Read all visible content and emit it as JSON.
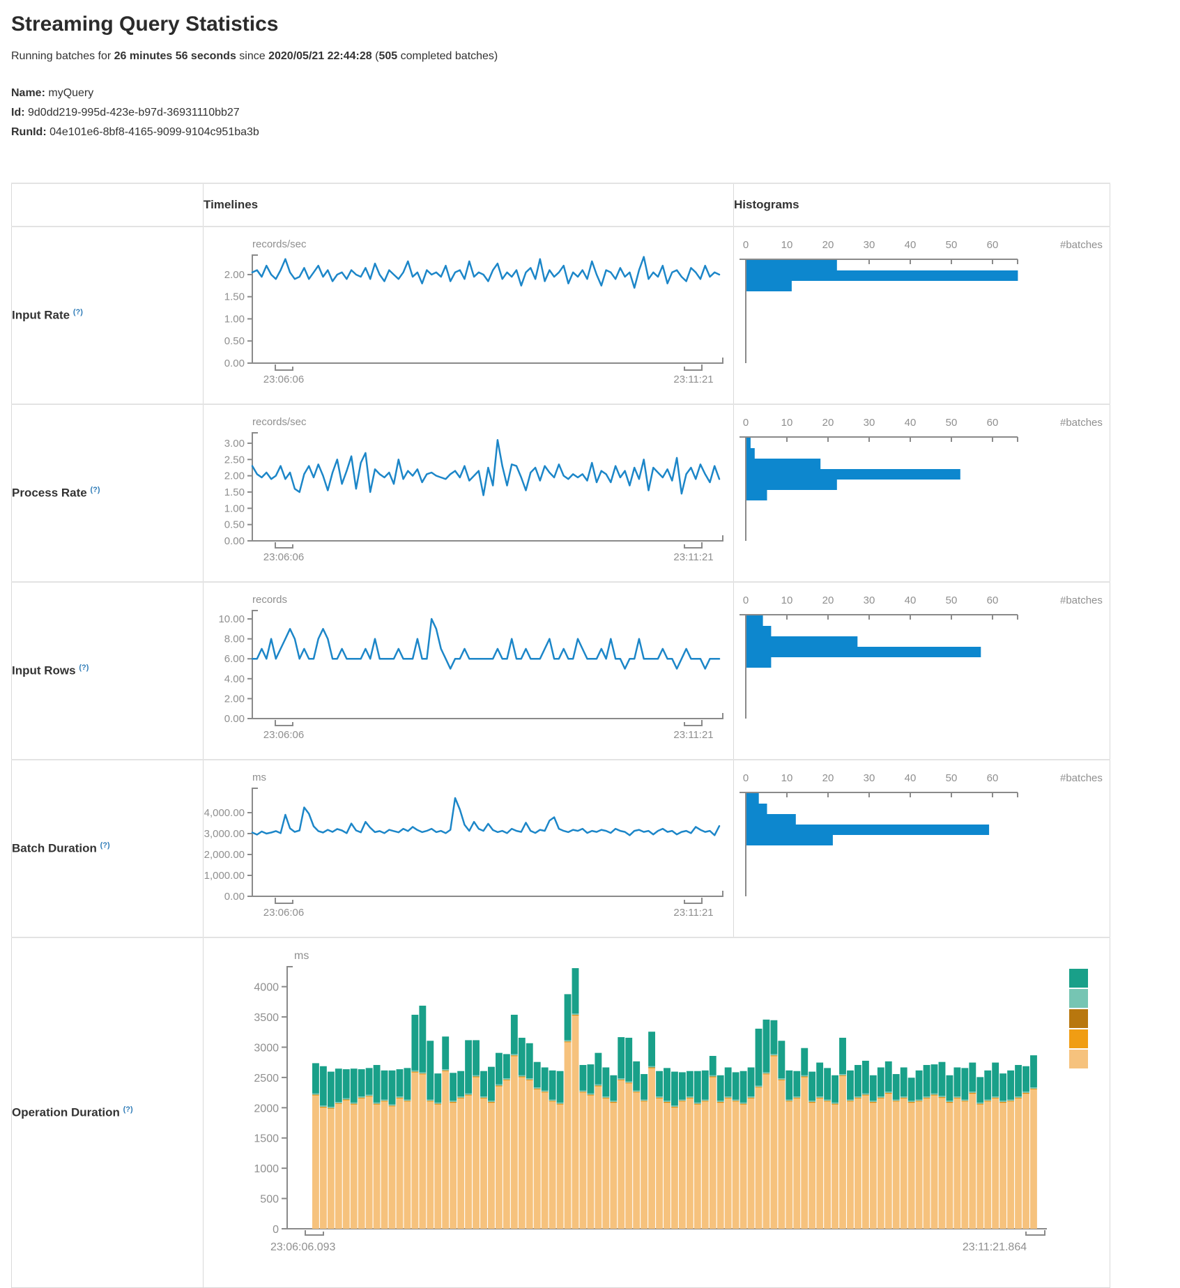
{
  "page": {
    "title": "Streaming Query Statistics"
  },
  "subtitle": {
    "prefix": "Running batches for",
    "duration": "26 minutes 56 seconds",
    "since": "since",
    "start_time": "2020/05/21 22:44:28",
    "open_paren": "(",
    "completed_count": "505",
    "suffix": "completed batches)"
  },
  "query_info": {
    "name_label": "Name:",
    "name": "myQuery",
    "id_label": "Id:",
    "id": "9d0dd219-995d-423e-b97d-36931110bb27",
    "runid_label": "RunId:",
    "runid": "04e101e6-8bf8-4165-9099-9104c951ba3b"
  },
  "table": {
    "timelines_header": "Timelines",
    "histograms_header": "Histograms"
  },
  "colors": {
    "timeline_line": "#1c86c8",
    "histogram_bar": "#0d87ce",
    "axis": "#8a8a8a",
    "tick_text": "#8f8f8f",
    "help_link": "#2f7cb8",
    "legend": [
      "#19a089",
      "#76c5b3",
      "#b8770e",
      "#f09d13",
      "#f6c27d"
    ]
  },
  "chart_data": [
    {
      "id": "input-rate",
      "label": "Input Rate",
      "help_marker": "(?)",
      "type": "line",
      "unit": "records/sec",
      "x_start_label": "23:06:06",
      "x_end_label": "23:11:21",
      "y_tick_labels": [
        "2.00",
        "1.50",
        "1.00",
        "0.50",
        "0.00"
      ],
      "y_tick_values": [
        2,
        1.5,
        1,
        0.5,
        0
      ],
      "y_axis_max": 2.44,
      "values": [
        2.05,
        2.1,
        1.95,
        2.2,
        2.0,
        1.9,
        2.1,
        2.35,
        2.05,
        1.9,
        1.95,
        2.15,
        1.9,
        2.05,
        2.2,
        1.95,
        2.1,
        1.85,
        2.0,
        2.05,
        1.9,
        2.1,
        2.0,
        1.95,
        2.15,
        1.9,
        2.25,
        2.0,
        1.85,
        2.1,
        2.0,
        1.9,
        2.05,
        2.3,
        1.95,
        2.05,
        1.8,
        2.1,
        2.0,
        2.05,
        1.95,
        2.2,
        1.85,
        2.05,
        2.1,
        1.9,
        2.3,
        1.95,
        2.05,
        2.0,
        1.85,
        2.1,
        2.25,
        1.9,
        2.05,
        1.95,
        2.1,
        1.75,
        2.05,
        2.15,
        1.9,
        2.35,
        1.85,
        2.1,
        1.95,
        2.05,
        2.2,
        1.8,
        2.05,
        1.95,
        2.1,
        1.9,
        2.3,
        2.0,
        1.75,
        2.1,
        2.05,
        1.9,
        2.15,
        1.95,
        2.05,
        1.7,
        2.1,
        2.4,
        1.9,
        2.05,
        1.95,
        2.2,
        1.8,
        2.05,
        2.1,
        1.95,
        1.85,
        2.15,
        2.05,
        1.9,
        2.2,
        1.95,
        2.05,
        2.0
      ],
      "histogram": {
        "x_tick_labels": [
          "0",
          "10",
          "20",
          "30",
          "40",
          "50",
          "60"
        ],
        "x_tick_values": [
          0,
          10,
          20,
          30,
          40,
          50,
          60
        ],
        "axis_label": "#batches",
        "bins": [
          22,
          66,
          11
        ]
      }
    },
    {
      "id": "process-rate",
      "label": "Process Rate",
      "help_marker": "(?)",
      "type": "line",
      "unit": "records/sec",
      "x_start_label": "23:06:06",
      "x_end_label": "23:11:21",
      "y_tick_labels": [
        "3.00",
        "2.50",
        "2.00",
        "1.50",
        "1.00",
        "0.50",
        "0.00"
      ],
      "y_tick_values": [
        3,
        2.5,
        2,
        1.5,
        1,
        0.5,
        0
      ],
      "y_axis_max": 3.32,
      "values": [
        2.3,
        2.05,
        1.95,
        2.1,
        1.9,
        2.0,
        2.3,
        1.9,
        2.1,
        1.6,
        1.5,
        2.05,
        2.3,
        1.95,
        2.35,
        2.0,
        1.55,
        2.1,
        2.5,
        1.75,
        2.15,
        2.6,
        1.6,
        2.4,
        2.7,
        1.5,
        2.2,
        2.05,
        1.95,
        2.1,
        1.75,
        2.5,
        1.9,
        2.15,
        2.0,
        2.2,
        1.8,
        2.05,
        2.1,
        2.0,
        1.95,
        1.9,
        2.05,
        2.15,
        1.95,
        2.3,
        1.85,
        2.0,
        2.15,
        1.4,
        2.25,
        1.7,
        3.1,
        2.3,
        1.7,
        2.35,
        2.3,
        1.95,
        1.55,
        2.1,
        2.25,
        1.85,
        2.3,
        2.1,
        1.95,
        2.35,
        2.0,
        1.9,
        2.05,
        1.95,
        2.05,
        1.85,
        2.4,
        1.8,
        2.15,
        2.05,
        1.8,
        2.3,
        1.95,
        2.15,
        1.7,
        2.25,
        1.9,
        2.5,
        1.55,
        2.25,
        2.1,
        1.95,
        2.2,
        1.85,
        2.55,
        1.45,
        2.05,
        2.25,
        1.9,
        2.35,
        2.05,
        1.8,
        2.3,
        1.9
      ],
      "histogram": {
        "x_tick_labels": [
          "0",
          "10",
          "20",
          "30",
          "40",
          "50",
          "60"
        ],
        "x_tick_values": [
          0,
          10,
          20,
          30,
          40,
          50,
          60
        ],
        "axis_label": "#batches",
        "bins": [
          1,
          2,
          18,
          52,
          22,
          5
        ]
      }
    },
    {
      "id": "input-rows",
      "label": "Input Rows",
      "help_marker": "(?)",
      "type": "line",
      "unit": "records",
      "x_start_label": "23:06:06",
      "x_end_label": "23:11:21",
      "y_tick_labels": [
        "10.00",
        "8.00",
        "6.00",
        "4.00",
        "2.00",
        "0.00"
      ],
      "y_tick_values": [
        10,
        8,
        6,
        4,
        2,
        0
      ],
      "y_axis_max": 10.84,
      "values": [
        6,
        6,
        7,
        6,
        8,
        6,
        7,
        8,
        9,
        8,
        6,
        7,
        6,
        6,
        8,
        9,
        8,
        6,
        6,
        7,
        6,
        6,
        6,
        6,
        7,
        6,
        8,
        6,
        6,
        6,
        6,
        7,
        6,
        6,
        6,
        8,
        6,
        6,
        10,
        9,
        7,
        6,
        5,
        6,
        6,
        7,
        6,
        6,
        6,
        6,
        6,
        6,
        7,
        6,
        6,
        8,
        6,
        6,
        7,
        6,
        6,
        6,
        7,
        8,
        6,
        6,
        7,
        6,
        6,
        8,
        7,
        6,
        6,
        6,
        7,
        6,
        8,
        6,
        6,
        5,
        6,
        6,
        8,
        6,
        6,
        6,
        6,
        7,
        6,
        6,
        5,
        6,
        7,
        6,
        6,
        6,
        5,
        6,
        6,
        6
      ],
      "histogram": {
        "x_tick_labels": [
          "0",
          "10",
          "20",
          "30",
          "40",
          "50",
          "60"
        ],
        "x_tick_values": [
          0,
          10,
          20,
          30,
          40,
          50,
          60
        ],
        "axis_label": "#batches",
        "bins": [
          4,
          6,
          27,
          57,
          6
        ]
      }
    },
    {
      "id": "batch-duration",
      "label": "Batch Duration",
      "help_marker": "(?)",
      "type": "line",
      "unit": "ms",
      "x_start_label": "23:06:06",
      "x_end_label": "23:11:21",
      "y_tick_labels": [
        "4,000.00",
        "3,000.00",
        "2,000.00",
        "1,000.00",
        "0.00"
      ],
      "y_tick_values": [
        4000,
        3000,
        2000,
        1000,
        0
      ],
      "y_axis_max": 5166,
      "values": [
        3050,
        2950,
        3100,
        3000,
        3050,
        3120,
        3020,
        3900,
        3250,
        3080,
        3150,
        4250,
        3950,
        3350,
        3120,
        3050,
        3180,
        3080,
        3220,
        3150,
        3020,
        3480,
        3150,
        3060,
        3560,
        3280,
        3070,
        3120,
        3020,
        3180,
        3120,
        3060,
        3230,
        3120,
        3320,
        3170,
        3070,
        3130,
        3230,
        3070,
        3130,
        3020,
        3180,
        4700,
        4150,
        3420,
        3130,
        3560,
        3230,
        3130,
        3470,
        3170,
        3070,
        3130,
        3020,
        3230,
        3130,
        3080,
        3520,
        3130,
        3030,
        3180,
        3130,
        3620,
        3780,
        3230,
        3130,
        3070,
        3180,
        3130,
        3230,
        3030,
        3130,
        3080,
        3180,
        3130,
        3030,
        3230,
        3130,
        3080,
        2920,
        3130,
        3180,
        3080,
        3130,
        2960,
        3130,
        3230,
        3080,
        3130,
        2960,
        3080,
        3130,
        3020,
        3320,
        3180,
        3080,
        3130,
        2920,
        3360
      ],
      "histogram": {
        "x_tick_labels": [
          "0",
          "10",
          "20",
          "30",
          "40",
          "50",
          "60"
        ],
        "x_tick_values": [
          0,
          10,
          20,
          30,
          40,
          50,
          60
        ],
        "axis_label": "#batches",
        "bins": [
          3,
          5,
          12,
          59,
          21
        ]
      }
    },
    {
      "id": "operation-duration",
      "label": "Operation Duration",
      "help_marker": "(?)",
      "type": "stacked-bar",
      "unit": "ms",
      "x_start_label": "23:06:06.093",
      "x_end_label": "23:11:21.864",
      "y_tick_labels": [
        "4000",
        "3500",
        "3000",
        "2500",
        "2000",
        "1500",
        "1000",
        "500",
        "0"
      ],
      "y_tick_values": [
        4000,
        3500,
        3000,
        2500,
        2000,
        1500,
        1000,
        500,
        0
      ],
      "y_axis_max": 4330,
      "stack": {
        "bottom_color": "#f6c27d",
        "bottom_values": [
          2200,
          2000,
          1980,
          2060,
          2120,
          2050,
          2150,
          2180,
          2050,
          2100,
          2020,
          2150,
          2100,
          2580,
          2550,
          2100,
          2050,
          2600,
          2080,
          2150,
          2200,
          2500,
          2150,
          2080,
          2350,
          2450,
          2850,
          2500,
          2450,
          2300,
          2250,
          2100,
          2050,
          3080,
          3520,
          2250,
          2200,
          2350,
          2150,
          2080,
          2450,
          2400,
          2250,
          2100,
          2650,
          2150,
          2080,
          2000,
          2100,
          2150,
          2050,
          2100,
          2500,
          2080,
          2150,
          2100,
          2050,
          2150,
          2330,
          2550,
          2850,
          2450,
          2100,
          2150,
          2500,
          2080,
          2150,
          2100,
          2050,
          2520,
          2100,
          2150,
          2200,
          2080,
          2150,
          2230,
          2100,
          2150,
          2080,
          2100,
          2150,
          2200,
          2160,
          2080,
          2150,
          2100,
          2230,
          2050,
          2100,
          2150,
          2080,
          2100,
          2150,
          2230,
          2300
        ],
        "slivers": [
          {
            "color": "#f09d13",
            "value": 10
          },
          {
            "color": "#b8770e",
            "value": 6
          },
          {
            "color": "#76c5b3",
            "value": 20
          }
        ],
        "top_color": "#19a089",
        "top_values": [
          500,
          650,
          580,
          550,
          480,
          560,
          450,
          440,
          620,
          480,
          560,
          450,
          520,
          920,
          1100,
          970,
          480,
          540,
          460,
          420,
          880,
          580,
          420,
          560,
          520,
          400,
          650,
          620,
          580,
          420,
          380,
          480,
          520,
          760,
          750,
          420,
          480,
          520,
          480,
          420,
          680,
          720,
          480,
          420,
          570,
          420,
          540,
          560,
          450,
          420,
          520,
          480,
          320,
          420,
          480,
          450,
          520,
          480,
          940,
          870,
          560,
          620,
          480,
          420,
          450,
          480,
          560,
          520,
          450,
          600,
          480,
          520,
          540,
          420,
          480,
          500,
          420,
          480,
          380,
          480,
          520,
          480,
          560,
          420,
          480,
          520,
          480,
          420,
          480,
          560,
          450,
          480,
          520,
          420,
          530
        ]
      },
      "legend_colors": [
        "#19a089",
        "#76c5b3",
        "#b8770e",
        "#f09d13",
        "#f6c27d"
      ]
    }
  ]
}
